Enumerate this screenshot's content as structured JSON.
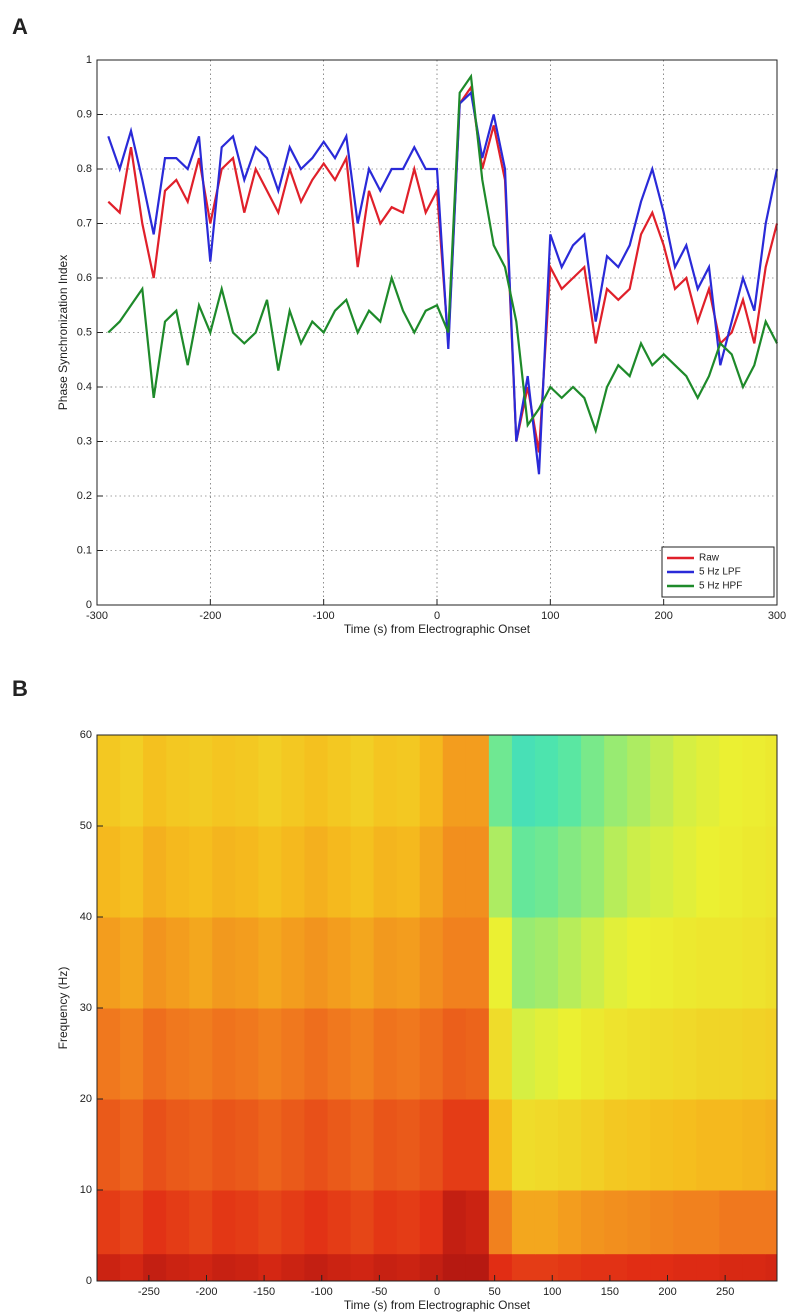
{
  "chart_data": [
    {
      "type": "line",
      "panel_label": "A",
      "xlabel": "Time (s) from Electrographic Onset",
      "ylabel": "Phase Synchronization Index",
      "x": [
        -290,
        -280,
        -270,
        -260,
        -250,
        -240,
        -230,
        -220,
        -210,
        -200,
        -190,
        -180,
        -170,
        -160,
        -150,
        -140,
        -130,
        -120,
        -110,
        -100,
        -90,
        -80,
        -70,
        -60,
        -50,
        -40,
        -30,
        -20,
        -10,
        0,
        10,
        20,
        30,
        40,
        50,
        60,
        70,
        80,
        90,
        100,
        110,
        120,
        130,
        140,
        150,
        160,
        170,
        180,
        190,
        200,
        210,
        220,
        230,
        240,
        250,
        260,
        270,
        280,
        290,
        300
      ],
      "series": [
        {
          "name": "Raw",
          "color": "#e0202a",
          "values": [
            0.74,
            0.72,
            0.84,
            0.7,
            0.6,
            0.76,
            0.78,
            0.74,
            0.82,
            0.7,
            0.8,
            0.82,
            0.72,
            0.8,
            0.76,
            0.72,
            0.8,
            0.74,
            0.78,
            0.81,
            0.78,
            0.82,
            0.62,
            0.76,
            0.7,
            0.73,
            0.72,
            0.8,
            0.72,
            0.76,
            0.48,
            0.92,
            0.95,
            0.8,
            0.88,
            0.78,
            0.3,
            0.4,
            0.28,
            0.62,
            0.58,
            0.6,
            0.62,
            0.48,
            0.58,
            0.56,
            0.58,
            0.68,
            0.72,
            0.66,
            0.58,
            0.6,
            0.52,
            0.58,
            0.48,
            0.5,
            0.56,
            0.48,
            0.62,
            0.7
          ]
        },
        {
          "name": "5 Hz LPF",
          "color": "#2a2ad8",
          "values": [
            0.86,
            0.8,
            0.87,
            0.78,
            0.68,
            0.82,
            0.82,
            0.8,
            0.86,
            0.63,
            0.84,
            0.86,
            0.78,
            0.84,
            0.82,
            0.76,
            0.84,
            0.8,
            0.82,
            0.85,
            0.82,
            0.86,
            0.7,
            0.8,
            0.76,
            0.8,
            0.8,
            0.84,
            0.8,
            0.8,
            0.47,
            0.92,
            0.94,
            0.82,
            0.9,
            0.8,
            0.3,
            0.42,
            0.24,
            0.68,
            0.62,
            0.66,
            0.68,
            0.52,
            0.64,
            0.62,
            0.66,
            0.74,
            0.8,
            0.72,
            0.62,
            0.66,
            0.58,
            0.62,
            0.44,
            0.52,
            0.6,
            0.54,
            0.7,
            0.8
          ]
        },
        {
          "name": "5 Hz HPF",
          "color": "#1e8a2a",
          "values": [
            0.5,
            0.52,
            0.55,
            0.58,
            0.38,
            0.52,
            0.54,
            0.44,
            0.55,
            0.5,
            0.58,
            0.5,
            0.48,
            0.5,
            0.56,
            0.43,
            0.54,
            0.48,
            0.52,
            0.5,
            0.54,
            0.56,
            0.5,
            0.54,
            0.52,
            0.6,
            0.54,
            0.5,
            0.54,
            0.55,
            0.5,
            0.94,
            0.97,
            0.78,
            0.66,
            0.62,
            0.52,
            0.33,
            0.36,
            0.4,
            0.38,
            0.4,
            0.38,
            0.32,
            0.4,
            0.44,
            0.42,
            0.48,
            0.44,
            0.46,
            0.44,
            0.42,
            0.38,
            0.42,
            0.48,
            0.46,
            0.4,
            0.44,
            0.52,
            0.48
          ]
        }
      ],
      "xlim": [
        -300,
        300
      ],
      "ylim": [
        0,
        1
      ],
      "xticks": [
        -300,
        -200,
        -100,
        0,
        100,
        200,
        300
      ],
      "yticks": [
        0,
        0.1,
        0.2,
        0.3,
        0.4,
        0.5,
        0.6,
        0.7,
        0.8,
        0.9,
        1
      ],
      "grid": true,
      "legend": "lower right"
    },
    {
      "type": "heatmap",
      "panel_label": "B",
      "xlabel": "Time (s) from Electrographic Onset",
      "ylabel": "Frequency (Hz)",
      "xbins": [
        -295,
        -275,
        -255,
        -235,
        -215,
        -195,
        -175,
        -155,
        -135,
        -115,
        -95,
        -75,
        -55,
        -35,
        -15,
        5,
        25,
        45,
        65,
        85,
        105,
        125,
        145,
        165,
        185,
        205,
        225,
        245,
        265,
        285,
        295
      ],
      "ybins": [
        0,
        3,
        10,
        20,
        30,
        40,
        50,
        60
      ],
      "values": [
        [
          0.8,
          0.78,
          0.82,
          0.8,
          0.79,
          0.81,
          0.8,
          0.78,
          0.8,
          0.82,
          0.8,
          0.79,
          0.81,
          0.8,
          0.82,
          0.85,
          0.85,
          0.75,
          0.72,
          0.72,
          0.73,
          0.74,
          0.74,
          0.75,
          0.75,
          0.76,
          0.76,
          0.77,
          0.77,
          0.78
        ],
        [
          0.72,
          0.7,
          0.74,
          0.72,
          0.7,
          0.73,
          0.72,
          0.7,
          0.72,
          0.74,
          0.72,
          0.7,
          0.73,
          0.72,
          0.74,
          0.82,
          0.8,
          0.58,
          0.5,
          0.5,
          0.52,
          0.54,
          0.55,
          0.56,
          0.57,
          0.58,
          0.58,
          0.6,
          0.6,
          0.6
        ],
        [
          0.66,
          0.64,
          0.68,
          0.66,
          0.65,
          0.67,
          0.66,
          0.64,
          0.66,
          0.68,
          0.66,
          0.64,
          0.67,
          0.66,
          0.68,
          0.72,
          0.72,
          0.45,
          0.36,
          0.37,
          0.38,
          0.4,
          0.42,
          0.43,
          0.44,
          0.45,
          0.46,
          0.46,
          0.47,
          0.48
        ],
        [
          0.6,
          0.58,
          0.62,
          0.6,
          0.59,
          0.61,
          0.6,
          0.58,
          0.6,
          0.62,
          0.6,
          0.58,
          0.61,
          0.6,
          0.62,
          0.65,
          0.64,
          0.36,
          0.28,
          0.29,
          0.3,
          0.32,
          0.34,
          0.35,
          0.36,
          0.37,
          0.38,
          0.38,
          0.39,
          0.4
        ],
        [
          0.52,
          0.5,
          0.54,
          0.52,
          0.5,
          0.53,
          0.52,
          0.5,
          0.52,
          0.54,
          0.52,
          0.5,
          0.53,
          0.52,
          0.55,
          0.58,
          0.58,
          0.3,
          0.22,
          0.23,
          0.25,
          0.27,
          0.29,
          0.3,
          0.31,
          0.32,
          0.33,
          0.33,
          0.34,
          0.35
        ],
        [
          0.46,
          0.44,
          0.48,
          0.46,
          0.45,
          0.47,
          0.46,
          0.44,
          0.46,
          0.48,
          0.46,
          0.44,
          0.47,
          0.46,
          0.5,
          0.55,
          0.55,
          0.24,
          0.17,
          0.18,
          0.2,
          0.22,
          0.25,
          0.27,
          0.28,
          0.29,
          0.3,
          0.31,
          0.32,
          0.33
        ],
        [
          0.42,
          0.4,
          0.44,
          0.42,
          0.41,
          0.43,
          0.42,
          0.4,
          0.42,
          0.44,
          0.42,
          0.4,
          0.43,
          0.42,
          0.46,
          0.52,
          0.52,
          0.18,
          0.12,
          0.14,
          0.16,
          0.19,
          0.22,
          0.24,
          0.26,
          0.28,
          0.29,
          0.3,
          0.31,
          0.32
        ]
      ],
      "xlim": [
        -295,
        295
      ],
      "ylim": [
        0,
        60
      ],
      "xticks": [
        -250,
        -200,
        -150,
        -100,
        -50,
        0,
        50,
        100,
        150,
        200,
        250
      ],
      "yticks": [
        0,
        10,
        20,
        30,
        40,
        50,
        60
      ]
    }
  ]
}
